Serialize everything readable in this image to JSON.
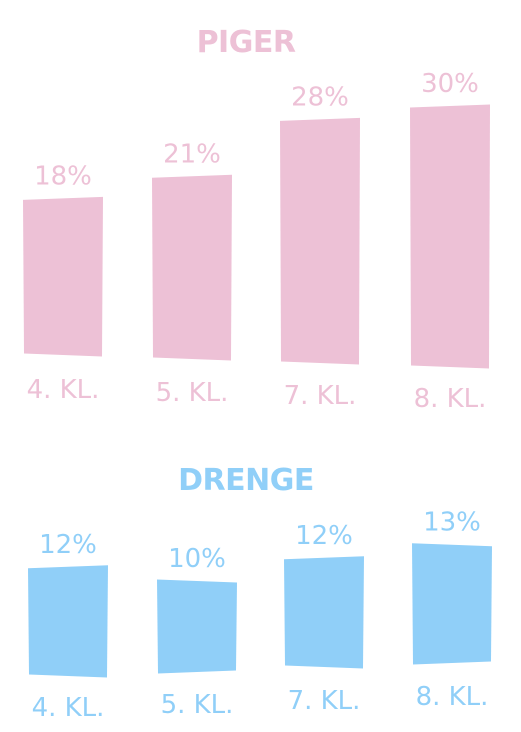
{
  "chart_data": [
    {
      "type": "bar",
      "title": "PIGER",
      "categories": [
        "4. KL.",
        "5. KL.",
        "7. KL.",
        "8. KL."
      ],
      "values": [
        18,
        21,
        28,
        30
      ],
      "value_labels": [
        "18%",
        "21%",
        "28%",
        "30%"
      ],
      "color": "#edc1d6",
      "xlabel": "",
      "ylabel": "",
      "ylim": [
        0,
        30
      ],
      "grid": false,
      "legend": "none"
    },
    {
      "type": "bar",
      "title": "DRENGE",
      "categories": [
        "4. KL.",
        "5. KL.",
        "7. KL.",
        "8. KL."
      ],
      "values": [
        12,
        10,
        12,
        13
      ],
      "value_labels": [
        "12%",
        "10%",
        "12%",
        "13%"
      ],
      "color": "#90cff8",
      "xlabel": "",
      "ylabel": "",
      "ylim": [
        0,
        13
      ],
      "grid": false,
      "legend": "none"
    }
  ]
}
